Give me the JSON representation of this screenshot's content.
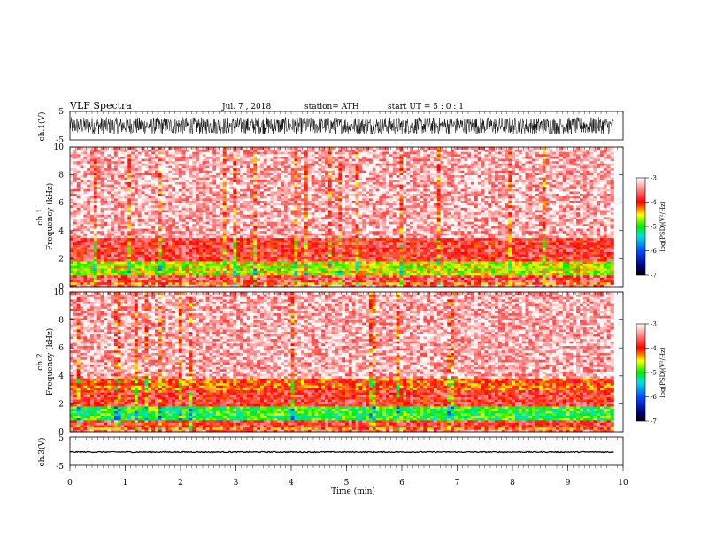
{
  "header": {
    "title": "VLF Spectra",
    "date": "Jul. 7 , 2018",
    "station": "station= ATH",
    "start": "start UT = 5 : 0 : 1"
  },
  "chart_data": [
    {
      "type": "line",
      "panel": "ch1-waveform",
      "ylabel": "ch.1(V)",
      "yticks": [
        "5",
        "-5"
      ],
      "ylim": [
        -5,
        5
      ],
      "x_range_min": [
        0,
        9.83
      ],
      "amplitude_range_V": [
        -3,
        3
      ]
    },
    {
      "type": "heatmap",
      "panel": "ch1-spectrogram",
      "ylabel_top": "ch.1",
      "ylabel": "Frequency (kHz)",
      "yticks": [
        "0",
        "2",
        "4",
        "6",
        "8",
        "10"
      ],
      "ylim": [
        0,
        10
      ],
      "x_range_min": [
        0,
        9.83
      ],
      "bands": [
        {
          "f": [
            0,
            0.15
          ],
          "level": -3.5
        },
        {
          "f": [
            0.15,
            0.3
          ],
          "level": -4.3
        },
        {
          "f": [
            0.3,
            0.9
          ],
          "level": -3.7
        },
        {
          "f": [
            0.9,
            1.8
          ],
          "level": -4.6
        },
        {
          "f": [
            1.8,
            3.5
          ],
          "level": -3.8
        },
        {
          "f": [
            3.5,
            10
          ],
          "level": -3.3
        }
      ],
      "colorbar": {
        "label": "log(PSD)(V²/Hz)",
        "ticks": [
          "-3",
          "-4",
          "-5",
          "-6",
          "-7"
        ],
        "range": [
          -7,
          -3
        ]
      }
    },
    {
      "type": "heatmap",
      "panel": "ch2-spectrogram",
      "ylabel_top": "ch.2",
      "ylabel": "Frequency (kHz)",
      "yticks": [
        "0",
        "2",
        "4",
        "6",
        "8",
        "10"
      ],
      "ylim": [
        0,
        10
      ],
      "x_range_min": [
        0,
        9.83
      ],
      "bands": [
        {
          "f": [
            0,
            0.2
          ],
          "level": -3.5
        },
        {
          "f": [
            0.2,
            0.4
          ],
          "level": -4.3
        },
        {
          "f": [
            0.4,
            0.9
          ],
          "level": -3.8
        },
        {
          "f": [
            0.9,
            1.8
          ],
          "level": -5.0
        },
        {
          "f": [
            1.8,
            3.0
          ],
          "level": -3.8
        },
        {
          "f": [
            3.0,
            3.8
          ],
          "level": -4.1
        },
        {
          "f": [
            3.8,
            10
          ],
          "level": -3.3
        }
      ],
      "colorbar": {
        "label": "log(PSD)(V²/Hz)",
        "ticks": [
          "-3",
          "-4",
          "-5",
          "-6",
          "-7"
        ],
        "range": [
          -7,
          -3
        ]
      }
    },
    {
      "type": "line",
      "panel": "ch3-waveform",
      "ylabel": "ch.3(V)",
      "yticks": [
        "5",
        "-5"
      ],
      "ylim": [
        -5,
        5
      ],
      "x_range_min": [
        0,
        9.83
      ],
      "baseline_V": -0.3,
      "amplitude_range_V": [
        -0.5,
        -0.1
      ],
      "xlabel": "Time (min)",
      "xticks": [
        "0",
        "1",
        "2",
        "3",
        "4",
        "5",
        "6",
        "7",
        "8",
        "9",
        "10"
      ],
      "xlim": [
        0,
        10
      ]
    }
  ]
}
